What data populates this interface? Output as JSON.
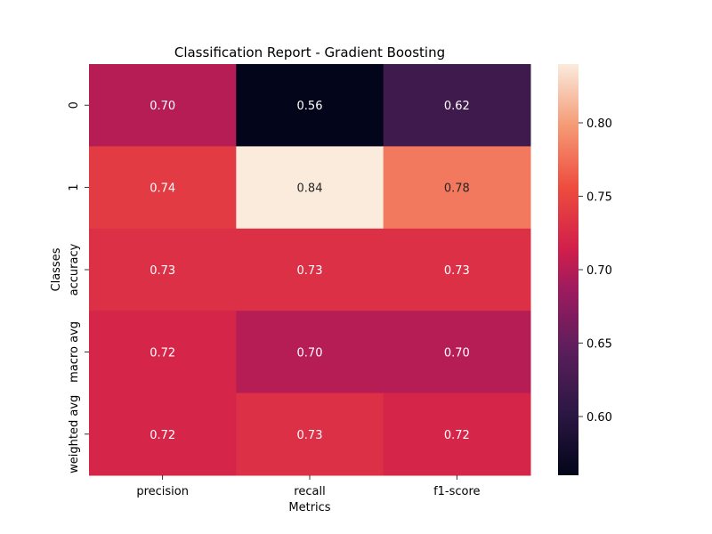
{
  "chart_data": {
    "type": "heatmap",
    "title": "Classification Report - Gradient Boosting",
    "xlabel": "Metrics",
    "ylabel": "Classes",
    "columns": [
      "precision",
      "recall",
      "f1-score"
    ],
    "rows": [
      "0",
      "1",
      "accuracy",
      "macro avg",
      "weighted avg"
    ],
    "values": [
      [
        0.7,
        0.56,
        0.62
      ],
      [
        0.74,
        0.84,
        0.78
      ],
      [
        0.73,
        0.73,
        0.73
      ],
      [
        0.72,
        0.7,
        0.7
      ],
      [
        0.72,
        0.73,
        0.72
      ]
    ],
    "value_labels": [
      [
        "0.70",
        "0.56",
        "0.62"
      ],
      [
        "0.74",
        "0.84",
        "0.78"
      ],
      [
        "0.73",
        "0.73",
        "0.73"
      ],
      [
        "0.72",
        "0.70",
        "0.70"
      ],
      [
        "0.72",
        "0.73",
        "0.72"
      ]
    ],
    "colormap": "rocket",
    "colorbar": {
      "range": [
        0.56,
        0.84
      ],
      "ticks": [
        0.6,
        0.65,
        0.7,
        0.75,
        0.8
      ],
      "tick_labels": [
        "0.60",
        "0.65",
        "0.70",
        "0.75",
        "0.80"
      ]
    },
    "grid": false
  }
}
